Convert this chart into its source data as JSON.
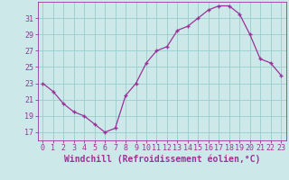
{
  "x": [
    0,
    1,
    2,
    3,
    4,
    5,
    6,
    7,
    8,
    9,
    10,
    11,
    12,
    13,
    14,
    15,
    16,
    17,
    18,
    19,
    20,
    21,
    22,
    23
  ],
  "y": [
    23.0,
    22.0,
    20.5,
    19.5,
    19.0,
    18.0,
    17.0,
    17.5,
    21.5,
    23.0,
    25.5,
    27.0,
    27.5,
    29.5,
    30.0,
    31.0,
    32.0,
    32.5,
    32.5,
    31.5,
    29.0,
    26.0,
    25.5,
    24.0
  ],
  "xlabel": "Windchill (Refroidissement éolien,°C)",
  "yticks": [
    17,
    19,
    21,
    23,
    25,
    27,
    29,
    31
  ],
  "xticks": [
    0,
    1,
    2,
    3,
    4,
    5,
    6,
    7,
    8,
    9,
    10,
    11,
    12,
    13,
    14,
    15,
    16,
    17,
    18,
    19,
    20,
    21,
    22,
    23
  ],
  "line_color": "#993399",
  "marker": "+",
  "bg_color": "#cce8e8",
  "grid_color": "#99cccc",
  "label_color": "#993399",
  "tick_color": "#993399",
  "xlim_left": -0.5,
  "xlim_right": 23.5,
  "ylim_bottom": 16.0,
  "ylim_top": 33.0,
  "tick_fontsize": 6.0,
  "xlabel_fontsize": 7.0,
  "linewidth": 0.9,
  "markersize": 3.5
}
